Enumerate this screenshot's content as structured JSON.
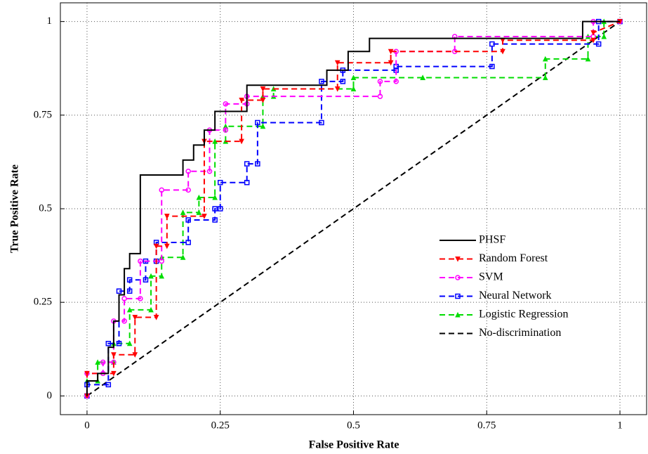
{
  "chart_data": {
    "type": "line",
    "x_label": "False Positive Rate",
    "y_label": "True Positive Rate",
    "xlim": [
      -0.05,
      1.05
    ],
    "ylim": [
      -0.05,
      1.05
    ],
    "xticks": [
      0,
      0.25,
      0.5,
      0.75,
      1
    ],
    "yticks": [
      0,
      0.25,
      0.5,
      0.75,
      1
    ],
    "grid": true,
    "legend": "lower right",
    "series": [
      {
        "name": "PHSF",
        "color": "#000000",
        "line_style": "solid",
        "marker": "none",
        "x": [
          0,
          0,
          0.02,
          0.02,
          0.04,
          0.04,
          0.05,
          0.05,
          0.06,
          0.06,
          0.07,
          0.07,
          0.08,
          0.08,
          0.1,
          0.1,
          0.18,
          0.18,
          0.2,
          0.2,
          0.22,
          0.22,
          0.24,
          0.24,
          0.3,
          0.3,
          0.45,
          0.45,
          0.49,
          0.49,
          0.53,
          0.53,
          0.93,
          0.93,
          1
        ],
        "values": [
          0,
          0.04,
          0.04,
          0.06,
          0.06,
          0.13,
          0.13,
          0.2,
          0.2,
          0.27,
          0.27,
          0.34,
          0.34,
          0.38,
          0.38,
          0.59,
          0.59,
          0.63,
          0.63,
          0.67,
          0.67,
          0.71,
          0.71,
          0.76,
          0.76,
          0.83,
          0.83,
          0.87,
          0.87,
          0.92,
          0.92,
          0.955,
          0.955,
          1,
          1
        ]
      },
      {
        "name": "Random Forest",
        "color": "#ff0000",
        "line_style": "dashed",
        "marker": "triangle-down",
        "x": [
          0,
          0,
          0.05,
          0.05,
          0.09,
          0.09,
          0.13,
          0.13,
          0.15,
          0.15,
          0.22,
          0.22,
          0.29,
          0.29,
          0.33,
          0.33,
          0.47,
          0.47,
          0.57,
          0.57,
          0.78,
          0.78,
          0.95,
          0.95,
          1
        ],
        "values": [
          0,
          0.06,
          0.06,
          0.11,
          0.11,
          0.21,
          0.21,
          0.4,
          0.4,
          0.48,
          0.48,
          0.68,
          0.68,
          0.79,
          0.79,
          0.82,
          0.82,
          0.89,
          0.89,
          0.92,
          0.92,
          0.95,
          0.95,
          0.97,
          1
        ]
      },
      {
        "name": "SVM",
        "color": "#ff00ff",
        "line_style": "dashed",
        "marker": "circle",
        "x": [
          0,
          0,
          0.03,
          0.03,
          0.05,
          0.05,
          0.07,
          0.07,
          0.1,
          0.1,
          0.14,
          0.14,
          0.19,
          0.19,
          0.23,
          0.23,
          0.26,
          0.26,
          0.3,
          0.3,
          0.55,
          0.55,
          0.58,
          0.58,
          0.69,
          0.69,
          0.95,
          0.95,
          1
        ],
        "values": [
          0,
          0.06,
          0.06,
          0.09,
          0.09,
          0.2,
          0.2,
          0.26,
          0.26,
          0.36,
          0.36,
          0.55,
          0.55,
          0.6,
          0.6,
          0.71,
          0.71,
          0.78,
          0.78,
          0.8,
          0.8,
          0.84,
          0.84,
          0.92,
          0.92,
          0.96,
          0.96,
          1,
          1
        ]
      },
      {
        "name": "Neural Network",
        "color": "#0000ff",
        "line_style": "dashed",
        "marker": "square",
        "x": [
          0,
          0,
          0.04,
          0.04,
          0.06,
          0.06,
          0.08,
          0.08,
          0.11,
          0.11,
          0.13,
          0.13,
          0.19,
          0.19,
          0.24,
          0.24,
          0.25,
          0.25,
          0.3,
          0.3,
          0.32,
          0.32,
          0.44,
          0.44,
          0.48,
          0.48,
          0.58,
          0.58,
          0.76,
          0.76,
          0.96,
          0.96,
          1
        ],
        "values": [
          0,
          0.03,
          0.03,
          0.14,
          0.14,
          0.28,
          0.28,
          0.31,
          0.31,
          0.36,
          0.36,
          0.41,
          0.41,
          0.47,
          0.47,
          0.5,
          0.5,
          0.57,
          0.57,
          0.62,
          0.62,
          0.73,
          0.73,
          0.84,
          0.84,
          0.87,
          0.87,
          0.88,
          0.88,
          0.94,
          0.94,
          1,
          1
        ]
      },
      {
        "name": "Logistic Regression",
        "color": "#00dd00",
        "line_style": "dashed",
        "marker": "triangle-up",
        "x": [
          0,
          0,
          0.02,
          0.02,
          0.05,
          0.05,
          0.08,
          0.08,
          0.12,
          0.12,
          0.14,
          0.14,
          0.18,
          0.18,
          0.21,
          0.21,
          0.24,
          0.24,
          0.26,
          0.26,
          0.33,
          0.33,
          0.35,
          0.35,
          0.5,
          0.5,
          0.63,
          0.63,
          0.86,
          0.86,
          0.94,
          0.94,
          0.97,
          0.97,
          1
        ],
        "values": [
          0,
          0.04,
          0.04,
          0.09,
          0.09,
          0.14,
          0.14,
          0.23,
          0.23,
          0.32,
          0.32,
          0.37,
          0.37,
          0.49,
          0.49,
          0.53,
          0.53,
          0.68,
          0.68,
          0.72,
          0.72,
          0.8,
          0.8,
          0.82,
          0.82,
          0.85,
          0.85,
          0.85,
          0.85,
          0.9,
          0.9,
          0.96,
          0.96,
          1,
          1
        ]
      },
      {
        "name": "No-discrimination",
        "color": "#000000",
        "line_style": "dashed",
        "marker": "none",
        "x": [
          0,
          1
        ],
        "values": [
          0,
          1
        ]
      }
    ]
  }
}
